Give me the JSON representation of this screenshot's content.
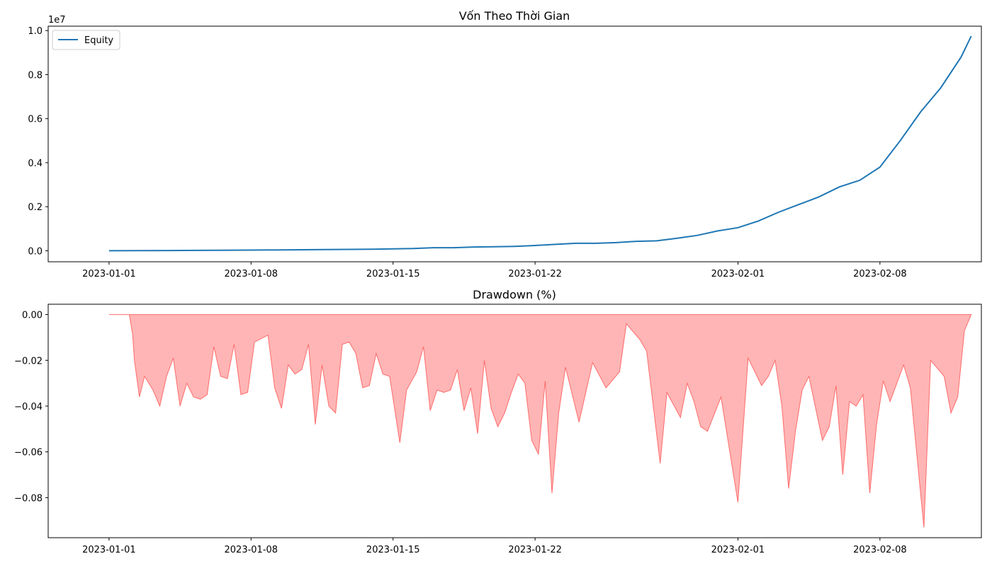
{
  "chart_data": [
    {
      "type": "line",
      "title": "Vốn Theo Thời Gian",
      "xlabel": "",
      "ylabel": "",
      "offset_text": "1e7",
      "legend": {
        "placement": "top-left",
        "entries": [
          "Equity"
        ]
      },
      "grid": false,
      "xlim": [
        "2022-12-29",
        "2023-02-13"
      ],
      "ylim": [
        -0.05,
        1.02
      ],
      "x_ticks": [
        "2023-01-01",
        "2023-01-08",
        "2023-01-15",
        "2023-01-22",
        "2023-02-01",
        "2023-02-08"
      ],
      "y_ticks": [
        "0.0",
        "0.2",
        "0.4",
        "0.6",
        "0.8",
        "1.0"
      ],
      "series": [
        {
          "name": "Equity",
          "color": "#1f77b4",
          "unit_scale": "1e7",
          "points": [
            [
              "2023-01-01",
              0.0
            ],
            [
              "2023-01-04",
              0.001
            ],
            [
              "2023-01-08",
              0.003
            ],
            [
              "2023-01-11",
              0.005
            ],
            [
              "2023-01-14",
              0.007
            ],
            [
              "2023-01-16",
              0.01
            ],
            [
              "2023-01-17",
              0.014
            ],
            [
              "2023-01-18",
              0.014
            ],
            [
              "2023-01-19",
              0.017
            ],
            [
              "2023-01-20",
              0.018
            ],
            [
              "2023-01-21",
              0.02
            ],
            [
              "2023-01-22",
              0.024
            ],
            [
              "2023-01-23",
              0.029
            ],
            [
              "2023-01-24",
              0.034
            ],
            [
              "2023-01-25",
              0.034
            ],
            [
              "2023-01-26",
              0.037
            ],
            [
              "2023-01-27",
              0.043
            ],
            [
              "2023-01-28",
              0.045
            ],
            [
              "2023-01-29",
              0.057
            ],
            [
              "2023-01-30",
              0.07
            ],
            [
              "2023-01-31",
              0.09
            ],
            [
              "2023-02-01",
              0.105
            ],
            [
              "2023-02-02",
              0.135
            ],
            [
              "2023-02-03",
              0.175
            ],
            [
              "2023-02-04",
              0.21
            ],
            [
              "2023-02-05",
              0.245
            ],
            [
              "2023-02-06",
              0.29
            ],
            [
              "2023-02-07",
              0.32
            ],
            [
              "2023-02-08",
              0.38
            ],
            [
              "2023-02-09",
              0.5
            ],
            [
              "2023-02-10",
              0.63
            ],
            [
              "2023-02-11",
              0.74
            ],
            [
              "2023-02-12",
              0.88
            ],
            [
              "2023-02-12T12:00",
              0.975
            ]
          ]
        }
      ]
    },
    {
      "type": "area",
      "title": "Drawdown (%)",
      "xlabel": "",
      "ylabel": "",
      "grid": false,
      "xlim": [
        "2022-12-29",
        "2023-02-13"
      ],
      "ylim": [
        -0.0975,
        0.0045
      ],
      "x_ticks": [
        "2023-01-01",
        "2023-01-08",
        "2023-01-15",
        "2023-01-22",
        "2023-02-01",
        "2023-02-08"
      ],
      "y_ticks": [
        "0.00",
        "−0.02",
        "−0.04",
        "−0.06",
        "−0.08"
      ],
      "series": [
        {
          "color": "#ff6b6b",
          "fill_opacity": 0.5,
          "note_values": "negative drawdown fraction; dense spikes, sampled",
          "points": [
            [
              "2023-01-01",
              0.0
            ],
            [
              "2023-01-02",
              0.0
            ],
            [
              "2023-01-02T04:00",
              -0.009
            ],
            [
              "2023-01-02T06:00",
              -0.02
            ],
            [
              "2023-01-02T12:00",
              -0.036
            ],
            [
              "2023-01-02T18:00",
              -0.027
            ],
            [
              "2023-01-03T04:00",
              -0.033
            ],
            [
              "2023-01-03T12:00",
              -0.04
            ],
            [
              "2023-01-03T20:00",
              -0.027
            ],
            [
              "2023-01-04T04:00",
              -0.019
            ],
            [
              "2023-01-04T12:00",
              -0.04
            ],
            [
              "2023-01-04T20:00",
              -0.03
            ],
            [
              "2023-01-05T04:00",
              -0.036
            ],
            [
              "2023-01-05T12:00",
              -0.037
            ],
            [
              "2023-01-05T20:00",
              -0.035
            ],
            [
              "2023-01-06T04:00",
              -0.014
            ],
            [
              "2023-01-06T12:00",
              -0.027
            ],
            [
              "2023-01-06T20:00",
              -0.028
            ],
            [
              "2023-01-07T04:00",
              -0.013
            ],
            [
              "2023-01-07T12:00",
              -0.035
            ],
            [
              "2023-01-07T20:00",
              -0.034
            ],
            [
              "2023-01-08T04:00",
              -0.012
            ],
            [
              "2023-01-08T20:00",
              -0.009
            ],
            [
              "2023-01-09T04:00",
              -0.032
            ],
            [
              "2023-01-09T12:00",
              -0.041
            ],
            [
              "2023-01-09T20:00",
              -0.022
            ],
            [
              "2023-01-10T04:00",
              -0.026
            ],
            [
              "2023-01-10T12:00",
              -0.024
            ],
            [
              "2023-01-10T20:00",
              -0.013
            ],
            [
              "2023-01-11T04:00",
              -0.048
            ],
            [
              "2023-01-11T12:00",
              -0.022
            ],
            [
              "2023-01-11T20:00",
              -0.04
            ],
            [
              "2023-01-12T04:00",
              -0.043
            ],
            [
              "2023-01-12T12:00",
              -0.013
            ],
            [
              "2023-01-12T20:00",
              -0.012
            ],
            [
              "2023-01-13T04:00",
              -0.017
            ],
            [
              "2023-01-13T12:00",
              -0.032
            ],
            [
              "2023-01-13T20:00",
              -0.031
            ],
            [
              "2023-01-14T04:00",
              -0.017
            ],
            [
              "2023-01-14T12:00",
              -0.026
            ],
            [
              "2023-01-14T20:00",
              -0.027
            ],
            [
              "2023-01-15T08:00",
              -0.056
            ],
            [
              "2023-01-15T16:00",
              -0.033
            ],
            [
              "2023-01-16T04:00",
              -0.025
            ],
            [
              "2023-01-16T12:00",
              -0.014
            ],
            [
              "2023-01-16T20:00",
              -0.042
            ],
            [
              "2023-01-17T04:00",
              -0.033
            ],
            [
              "2023-01-17T12:00",
              -0.034
            ],
            [
              "2023-01-17T20:00",
              -0.033
            ],
            [
              "2023-01-18T04:00",
              -0.024
            ],
            [
              "2023-01-18T12:00",
              -0.042
            ],
            [
              "2023-01-18T20:00",
              -0.032
            ],
            [
              "2023-01-19T04:00",
              -0.052
            ],
            [
              "2023-01-19T12:00",
              -0.02
            ],
            [
              "2023-01-19T20:00",
              -0.041
            ],
            [
              "2023-01-20T04:00",
              -0.049
            ],
            [
              "2023-01-20T12:00",
              -0.043
            ],
            [
              "2023-01-20T20:00",
              -0.034
            ],
            [
              "2023-01-21T04:00",
              -0.026
            ],
            [
              "2023-01-21T12:00",
              -0.03
            ],
            [
              "2023-01-21T20:00",
              -0.055
            ],
            [
              "2023-01-22T04:00",
              -0.061
            ],
            [
              "2023-01-22T12:00",
              -0.029
            ],
            [
              "2023-01-22T20:00",
              -0.078
            ],
            [
              "2023-01-23T04:00",
              -0.043
            ],
            [
              "2023-01-23T12:00",
              -0.023
            ],
            [
              "2023-01-24T04:00",
              -0.047
            ],
            [
              "2023-01-24T12:00",
              -0.034
            ],
            [
              "2023-01-24T20:00",
              -0.021
            ],
            [
              "2023-01-25T12:00",
              -0.032
            ],
            [
              "2023-01-26T04:00",
              -0.025
            ],
            [
              "2023-01-26T12:00",
              -0.004
            ],
            [
              "2023-01-27T04:00",
              -0.011
            ],
            [
              "2023-01-27T12:00",
              -0.016
            ],
            [
              "2023-01-28T04:00",
              -0.065
            ],
            [
              "2023-01-28T12:00",
              -0.034
            ],
            [
              "2023-01-29T04:00",
              -0.045
            ],
            [
              "2023-01-29T12:00",
              -0.03
            ],
            [
              "2023-01-29T20:00",
              -0.038
            ],
            [
              "2023-01-30T04:00",
              -0.049
            ],
            [
              "2023-01-30T12:00",
              -0.051
            ],
            [
              "2023-01-31T04:00",
              -0.036
            ],
            [
              "2023-02-01T00:00",
              -0.082
            ],
            [
              "2023-02-01T12:00",
              -0.019
            ],
            [
              "2023-02-02T04:00",
              -0.031
            ],
            [
              "2023-02-02T12:00",
              -0.027
            ],
            [
              "2023-02-02T20:00",
              -0.02
            ],
            [
              "2023-02-03T04:00",
              -0.04
            ],
            [
              "2023-02-03T12:00",
              -0.076
            ],
            [
              "2023-02-03T20:00",
              -0.051
            ],
            [
              "2023-02-04T04:00",
              -0.033
            ],
            [
              "2023-02-04T12:00",
              -0.027
            ],
            [
              "2023-02-05T04:00",
              -0.055
            ],
            [
              "2023-02-05T12:00",
              -0.049
            ],
            [
              "2023-02-05T20:00",
              -0.031
            ],
            [
              "2023-02-06T04:00",
              -0.07
            ],
            [
              "2023-02-06T12:00",
              -0.038
            ],
            [
              "2023-02-06T20:00",
              -0.04
            ],
            [
              "2023-02-07T04:00",
              -0.035
            ],
            [
              "2023-02-07T12:00",
              -0.078
            ],
            [
              "2023-02-07T20:00",
              -0.048
            ],
            [
              "2023-02-08T04:00",
              -0.029
            ],
            [
              "2023-02-08T12:00",
              -0.038
            ],
            [
              "2023-02-09T04:00",
              -0.022
            ],
            [
              "2023-02-09T12:00",
              -0.032
            ],
            [
              "2023-02-10T04:00",
              -0.093
            ],
            [
              "2023-02-10T12:00",
              -0.02
            ],
            [
              "2023-02-11T04:00",
              -0.027
            ],
            [
              "2023-02-11T12:00",
              -0.043
            ],
            [
              "2023-02-11T20:00",
              -0.036
            ],
            [
              "2023-02-12T04:00",
              -0.007
            ],
            [
              "2023-02-12T12:00",
              0.0
            ]
          ]
        }
      ]
    }
  ]
}
